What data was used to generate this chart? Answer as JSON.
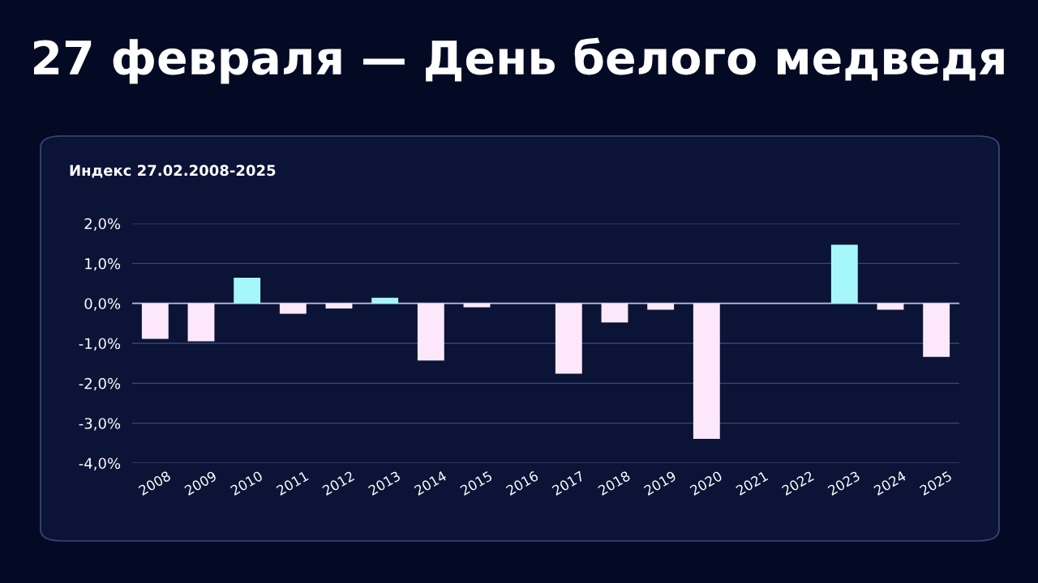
{
  "chart_data": {
    "type": "bar",
    "title": "27 февраля — День белого медведя",
    "subtitle": "Индекс 27.02.2008-2025",
    "categories": [
      "2008",
      "2009",
      "2010",
      "2011",
      "2012",
      "2013",
      "2014",
      "2015",
      "2016",
      "2017",
      "2018",
      "2019",
      "2020",
      "2021",
      "2022",
      "2023",
      "2024",
      "2025"
    ],
    "values": [
      -0.89,
      -0.95,
      0.64,
      -0.26,
      -0.13,
      0.14,
      -1.43,
      -0.1,
      null,
      -1.76,
      -0.48,
      -0.16,
      -3.39,
      null,
      null,
      1.47,
      -0.16,
      -1.34
    ],
    "colors": [
      "#fde8fb",
      "#fde8fb",
      "#a6f7fb",
      "#fde8fb",
      "#fde8fb",
      "#a6f7fb",
      "#fde8fb",
      "#fde8fb",
      "#fde8fb",
      "#fde8fb",
      "#fde8fb",
      "#fde8fb",
      "#fde8fb",
      "#fde8fb",
      "#fde8fb",
      "#a6f7fb",
      "#fde8fb",
      "#fde8fb"
    ],
    "ylim": [
      -4.0,
      2.0
    ],
    "yticks": [
      {
        "value": 2.0,
        "label": "2,0%"
      },
      {
        "value": 1.0,
        "label": "1,0%"
      },
      {
        "value": 0.0,
        "label": "0,0%"
      },
      {
        "value": -1.0,
        "label": "-1,0%"
      },
      {
        "value": -2.0,
        "label": "-2,0%"
      },
      {
        "value": -3.0,
        "label": "-3,0%"
      },
      {
        "value": -4.0,
        "label": "-4,0%"
      }
    ],
    "grid": "y",
    "legend": false
  }
}
